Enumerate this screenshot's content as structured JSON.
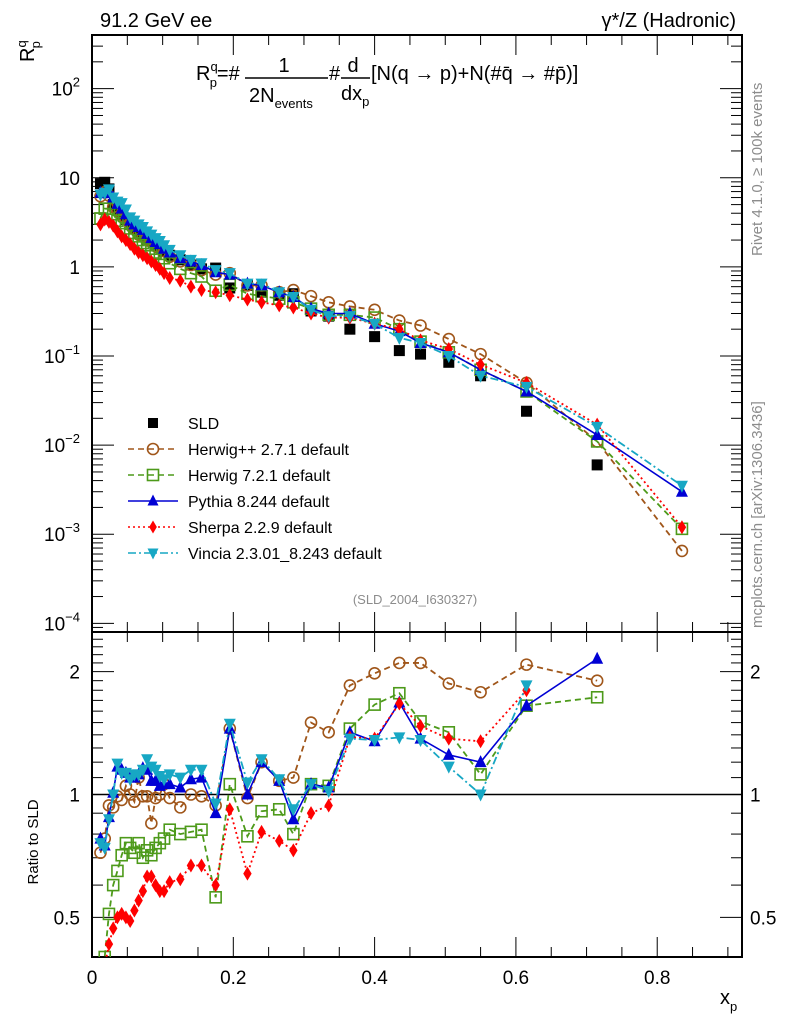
{
  "header": {
    "left_title": "91.2 GeV ee",
    "right_title": "γ*/Z (Hadronic)"
  },
  "side_labels": {
    "rivet": "Rivet 4.1.0, ≥ 100k events",
    "mcplots": "mcplots.cern.ch [arXiv:1306.3436]"
  },
  "chart_data": [
    {
      "type": "scatter",
      "panel": "main",
      "title": "R_p^q = #1/(2N_events) #d/dx_p [N(q → p)+N(#q̄ → #p̄)]",
      "formula_parts": {
        "lhs": "R",
        "lhs_sup": "q",
        "lhs_sub": "p",
        "eq": "=#",
        "frac1_num": "1",
        "frac1_den": "2N",
        "frac1_den_sub": "events",
        "hash": "#",
        "frac2_num": "d",
        "frac2_den": "dx",
        "frac2_den_sub": "p",
        "bracket": "[N(q →  p)+N(#q̄ →  #p̄)]"
      },
      "ylabel": "R",
      "ylabel_sup": "q",
      "ylabel_sub": "p",
      "yscale": "log",
      "ylim": [
        8e-05,
        400
      ],
      "xlim": [
        0,
        0.92
      ],
      "yticks": [
        {
          "value": 100,
          "label": "10",
          "exp": "2"
        },
        {
          "value": 10,
          "label": "10",
          "exp": ""
        },
        {
          "value": 1,
          "label": "1",
          "exp": ""
        },
        {
          "value": 0.1,
          "label": "10",
          "exp": "−1"
        },
        {
          "value": 0.01,
          "label": "10",
          "exp": "−2"
        },
        {
          "value": 0.001,
          "label": "10",
          "exp": "−3"
        },
        {
          "value": 0.0001,
          "label": "10",
          "exp": "−4"
        }
      ],
      "legend_position": "bottom-left",
      "watermark": "(SLD_2004_I630327)",
      "x": [
        0.012,
        0.018,
        0.024,
        0.03,
        0.036,
        0.042,
        0.048,
        0.054,
        0.06,
        0.066,
        0.072,
        0.078,
        0.084,
        0.09,
        0.096,
        0.102,
        0.11,
        0.125,
        0.14,
        0.155,
        0.175,
        0.195,
        0.22,
        0.24,
        0.265,
        0.285,
        0.31,
        0.335,
        0.365,
        0.4,
        0.435,
        0.465,
        0.505,
        0.55,
        0.615,
        0.715,
        0.835
      ],
      "series": [
        {
          "name": "SLD",
          "color": "#000000",
          "marker": "square",
          "line": "none",
          "values": [
            8.6,
            8.9,
            7.5,
            5.0,
            4.3,
            3.9,
            3.4,
            3.0,
            2.7,
            2.4,
            2.25,
            2.05,
            1.95,
            1.75,
            1.65,
            1.5,
            1.35,
            1.2,
            1.05,
            0.95,
            0.97,
            0.58,
            0.62,
            0.52,
            0.48,
            0.5,
            0.32,
            0.28,
            0.2,
            0.165,
            0.115,
            0.105,
            0.085,
            0.06,
            0.024,
            0.006,
            null
          ]
        },
        {
          "name": "Herwig++ 2.7.1 default",
          "color": "#a0561a",
          "marker": "open-circle",
          "line": "dashed",
          "values": [
            6.2,
            6.9,
            6.3,
            4.7,
            4.3,
            3.7,
            3.4,
            3.0,
            2.65,
            2.3,
            2.2,
            2.05,
            1.9,
            1.7,
            1.6,
            1.5,
            1.3,
            1.15,
            1.05,
            0.92,
            0.82,
            0.85,
            0.62,
            0.62,
            0.52,
            0.55,
            0.47,
            0.4,
            0.36,
            0.33,
            0.25,
            0.22,
            0.155,
            0.105,
            0.05,
            0.011,
            0.00065
          ]
        },
        {
          "name": "Herwig 7.2.1 default",
          "color": "#4d9a1a",
          "marker": "open-square",
          "line": "dashed",
          "values": [
            3.5,
            4.5,
            4.5,
            3.9,
            3.3,
            3.1,
            2.7,
            2.4,
            2.2,
            2.0,
            1.85,
            1.75,
            1.6,
            1.45,
            1.4,
            1.25,
            1.1,
            0.95,
            0.85,
            0.78,
            0.54,
            0.63,
            0.5,
            0.47,
            0.44,
            0.4,
            0.34,
            0.29,
            0.29,
            0.27,
            0.2,
            0.145,
            0.11,
            0.07,
            0.04,
            0.011,
            0.00115
          ]
        },
        {
          "name": "Pythia 8.244 default",
          "color": "#0000d4",
          "marker": "triangle-up",
          "line": "solid",
          "values": [
            6.8,
            6.7,
            7.0,
            6.0,
            5.1,
            4.5,
            3.9,
            3.3,
            3.0,
            2.8,
            2.6,
            2.35,
            2.1,
            1.9,
            1.8,
            1.6,
            1.45,
            1.25,
            1.15,
            1.05,
            0.87,
            0.82,
            0.65,
            0.62,
            0.52,
            0.46,
            0.34,
            0.3,
            0.3,
            0.23,
            0.19,
            0.14,
            0.11,
            0.07,
            0.04,
            0.013,
            0.003
          ]
        },
        {
          "name": "Sherpa 2.2.9 default",
          "color": "#ff0000",
          "marker": "diamond",
          "line": "dotted",
          "values": [
            3.0,
            3.4,
            3.2,
            2.9,
            2.5,
            2.2,
            2.0,
            1.8,
            1.6,
            1.45,
            1.35,
            1.25,
            1.15,
            1.05,
            0.95,
            0.85,
            0.75,
            0.7,
            0.6,
            0.55,
            0.52,
            0.48,
            0.43,
            0.4,
            0.37,
            0.35,
            0.3,
            0.27,
            0.27,
            0.23,
            0.2,
            0.15,
            0.12,
            0.08,
            0.05,
            0.017,
            0.0012
          ]
        },
        {
          "name": "Vincia 2.3.01_8.243 default",
          "color": "#17a7c4",
          "marker": "triangle-down",
          "line": "dashdot",
          "values": [
            6.5,
            6.8,
            7.4,
            6.0,
            5.4,
            5.2,
            4.4,
            3.6,
            3.3,
            3.0,
            2.8,
            2.5,
            2.3,
            2.1,
            1.95,
            1.75,
            1.55,
            1.35,
            1.2,
            1.1,
            0.92,
            0.85,
            0.65,
            0.65,
            0.52,
            0.46,
            0.33,
            0.28,
            0.28,
            0.23,
            0.16,
            0.14,
            0.1,
            0.06,
            0.045,
            0.016,
            0.0035
          ]
        }
      ]
    },
    {
      "type": "scatter",
      "panel": "ratio",
      "ylabel": "Ratio to SLD",
      "xlabel": "x",
      "xlabel_sub": "p",
      "yscale": "log",
      "ylim": [
        0.4,
        2.5
      ],
      "xlim": [
        0,
        0.92
      ],
      "xticks": [
        {
          "value": 0,
          "label": "0"
        },
        {
          "value": 0.2,
          "label": "0.2"
        },
        {
          "value": 0.4,
          "label": "0.4"
        },
        {
          "value": 0.6,
          "label": "0.6"
        },
        {
          "value": 0.8,
          "label": "0.8"
        }
      ],
      "yticks": [
        {
          "value": 2,
          "label": "2"
        },
        {
          "value": 1,
          "label": "1"
        },
        {
          "value": 0.5,
          "label": "0.5"
        }
      ],
      "reference_line": 1,
      "x": [
        0.012,
        0.018,
        0.024,
        0.03,
        0.036,
        0.042,
        0.048,
        0.054,
        0.06,
        0.066,
        0.072,
        0.078,
        0.084,
        0.09,
        0.096,
        0.102,
        0.11,
        0.125,
        0.14,
        0.155,
        0.175,
        0.195,
        0.22,
        0.24,
        0.265,
        0.285,
        0.31,
        0.335,
        0.365,
        0.4,
        0.435,
        0.465,
        0.505,
        0.55,
        0.615,
        0.715,
        0.835
      ],
      "series": [
        {
          "name": "Herwig++ 2.7.1 default",
          "color": "#a0561a",
          "marker": "open-circle",
          "line": "dashed",
          "values": [
            0.72,
            0.78,
            0.94,
            0.93,
            0.99,
            0.97,
            1.05,
            1.0,
            0.96,
            1.1,
            0.99,
            0.99,
            0.85,
            0.98,
            1.0,
            1.06,
            0.98,
            0.93,
            1.0,
            0.99,
            0.94,
            1.45,
            0.98,
            1.2,
            1.08,
            1.1,
            1.5,
            1.42,
            1.85,
            1.98,
            2.1,
            2.1,
            1.87,
            1.78,
            2.08,
            1.9,
            null
          ]
        },
        {
          "name": "Herwig 7.2.1 default",
          "color": "#4d9a1a",
          "marker": "open-square",
          "line": "dashed",
          "values": [
            0.36,
            0.4,
            0.51,
            0.6,
            0.65,
            0.71,
            0.76,
            0.74,
            0.72,
            0.76,
            0.7,
            0.73,
            0.71,
            0.74,
            0.76,
            0.78,
            0.82,
            0.8,
            0.81,
            0.82,
            0.56,
            1.06,
            0.79,
            0.91,
            0.92,
            0.8,
            1.06,
            1.05,
            1.45,
            1.66,
            1.77,
            1.51,
            1.42,
            1.12,
            1.65,
            1.73,
            null
          ]
        },
        {
          "name": "Pythia 8.244 default",
          "color": "#0000d4",
          "marker": "triangle-up",
          "line": "solid",
          "values": [
            0.78,
            0.75,
            0.88,
            1.01,
            1.17,
            1.15,
            1.13,
            1.1,
            1.1,
            1.12,
            1.16,
            1.15,
            1.08,
            1.08,
            1.05,
            1.06,
            1.06,
            1.04,
            1.09,
            1.1,
            0.9,
            1.45,
            1.0,
            1.2,
            1.08,
            0.87,
            1.06,
            1.04,
            1.42,
            1.35,
            1.68,
            1.37,
            1.25,
            1.2,
            1.65,
            2.15,
            null
          ]
        },
        {
          "name": "Sherpa 2.2.9 default",
          "color": "#ff0000",
          "marker": "diamond",
          "line": "dotted",
          "values": [
            0.36,
            0.38,
            0.43,
            0.47,
            0.5,
            0.51,
            0.5,
            0.49,
            0.52,
            0.55,
            0.58,
            0.63,
            0.63,
            0.6,
            0.58,
            0.58,
            0.61,
            0.62,
            0.67,
            0.67,
            0.6,
            0.92,
            0.64,
            0.81,
            0.77,
            0.73,
            0.9,
            0.94,
            1.38,
            1.37,
            1.67,
            1.47,
            1.37,
            1.35,
            1.8,
            null,
            null
          ]
        },
        {
          "name": "Vincia 2.3.01_8.243 default",
          "color": "#17a7c4",
          "marker": "triangle-down",
          "line": "dashdot",
          "values": [
            0.76,
            0.74,
            0.87,
            1.0,
            1.19,
            1.13,
            1.13,
            1.09,
            1.12,
            1.12,
            1.15,
            1.22,
            1.17,
            1.15,
            1.11,
            1.09,
            1.12,
            1.1,
            1.15,
            1.15,
            0.95,
            1.49,
            1.07,
            1.22,
            1.09,
            0.92,
            1.06,
            1.02,
            1.37,
            1.36,
            1.38,
            1.36,
            1.17,
            1.0,
            1.85,
            null,
            null
          ]
        }
      ]
    }
  ]
}
